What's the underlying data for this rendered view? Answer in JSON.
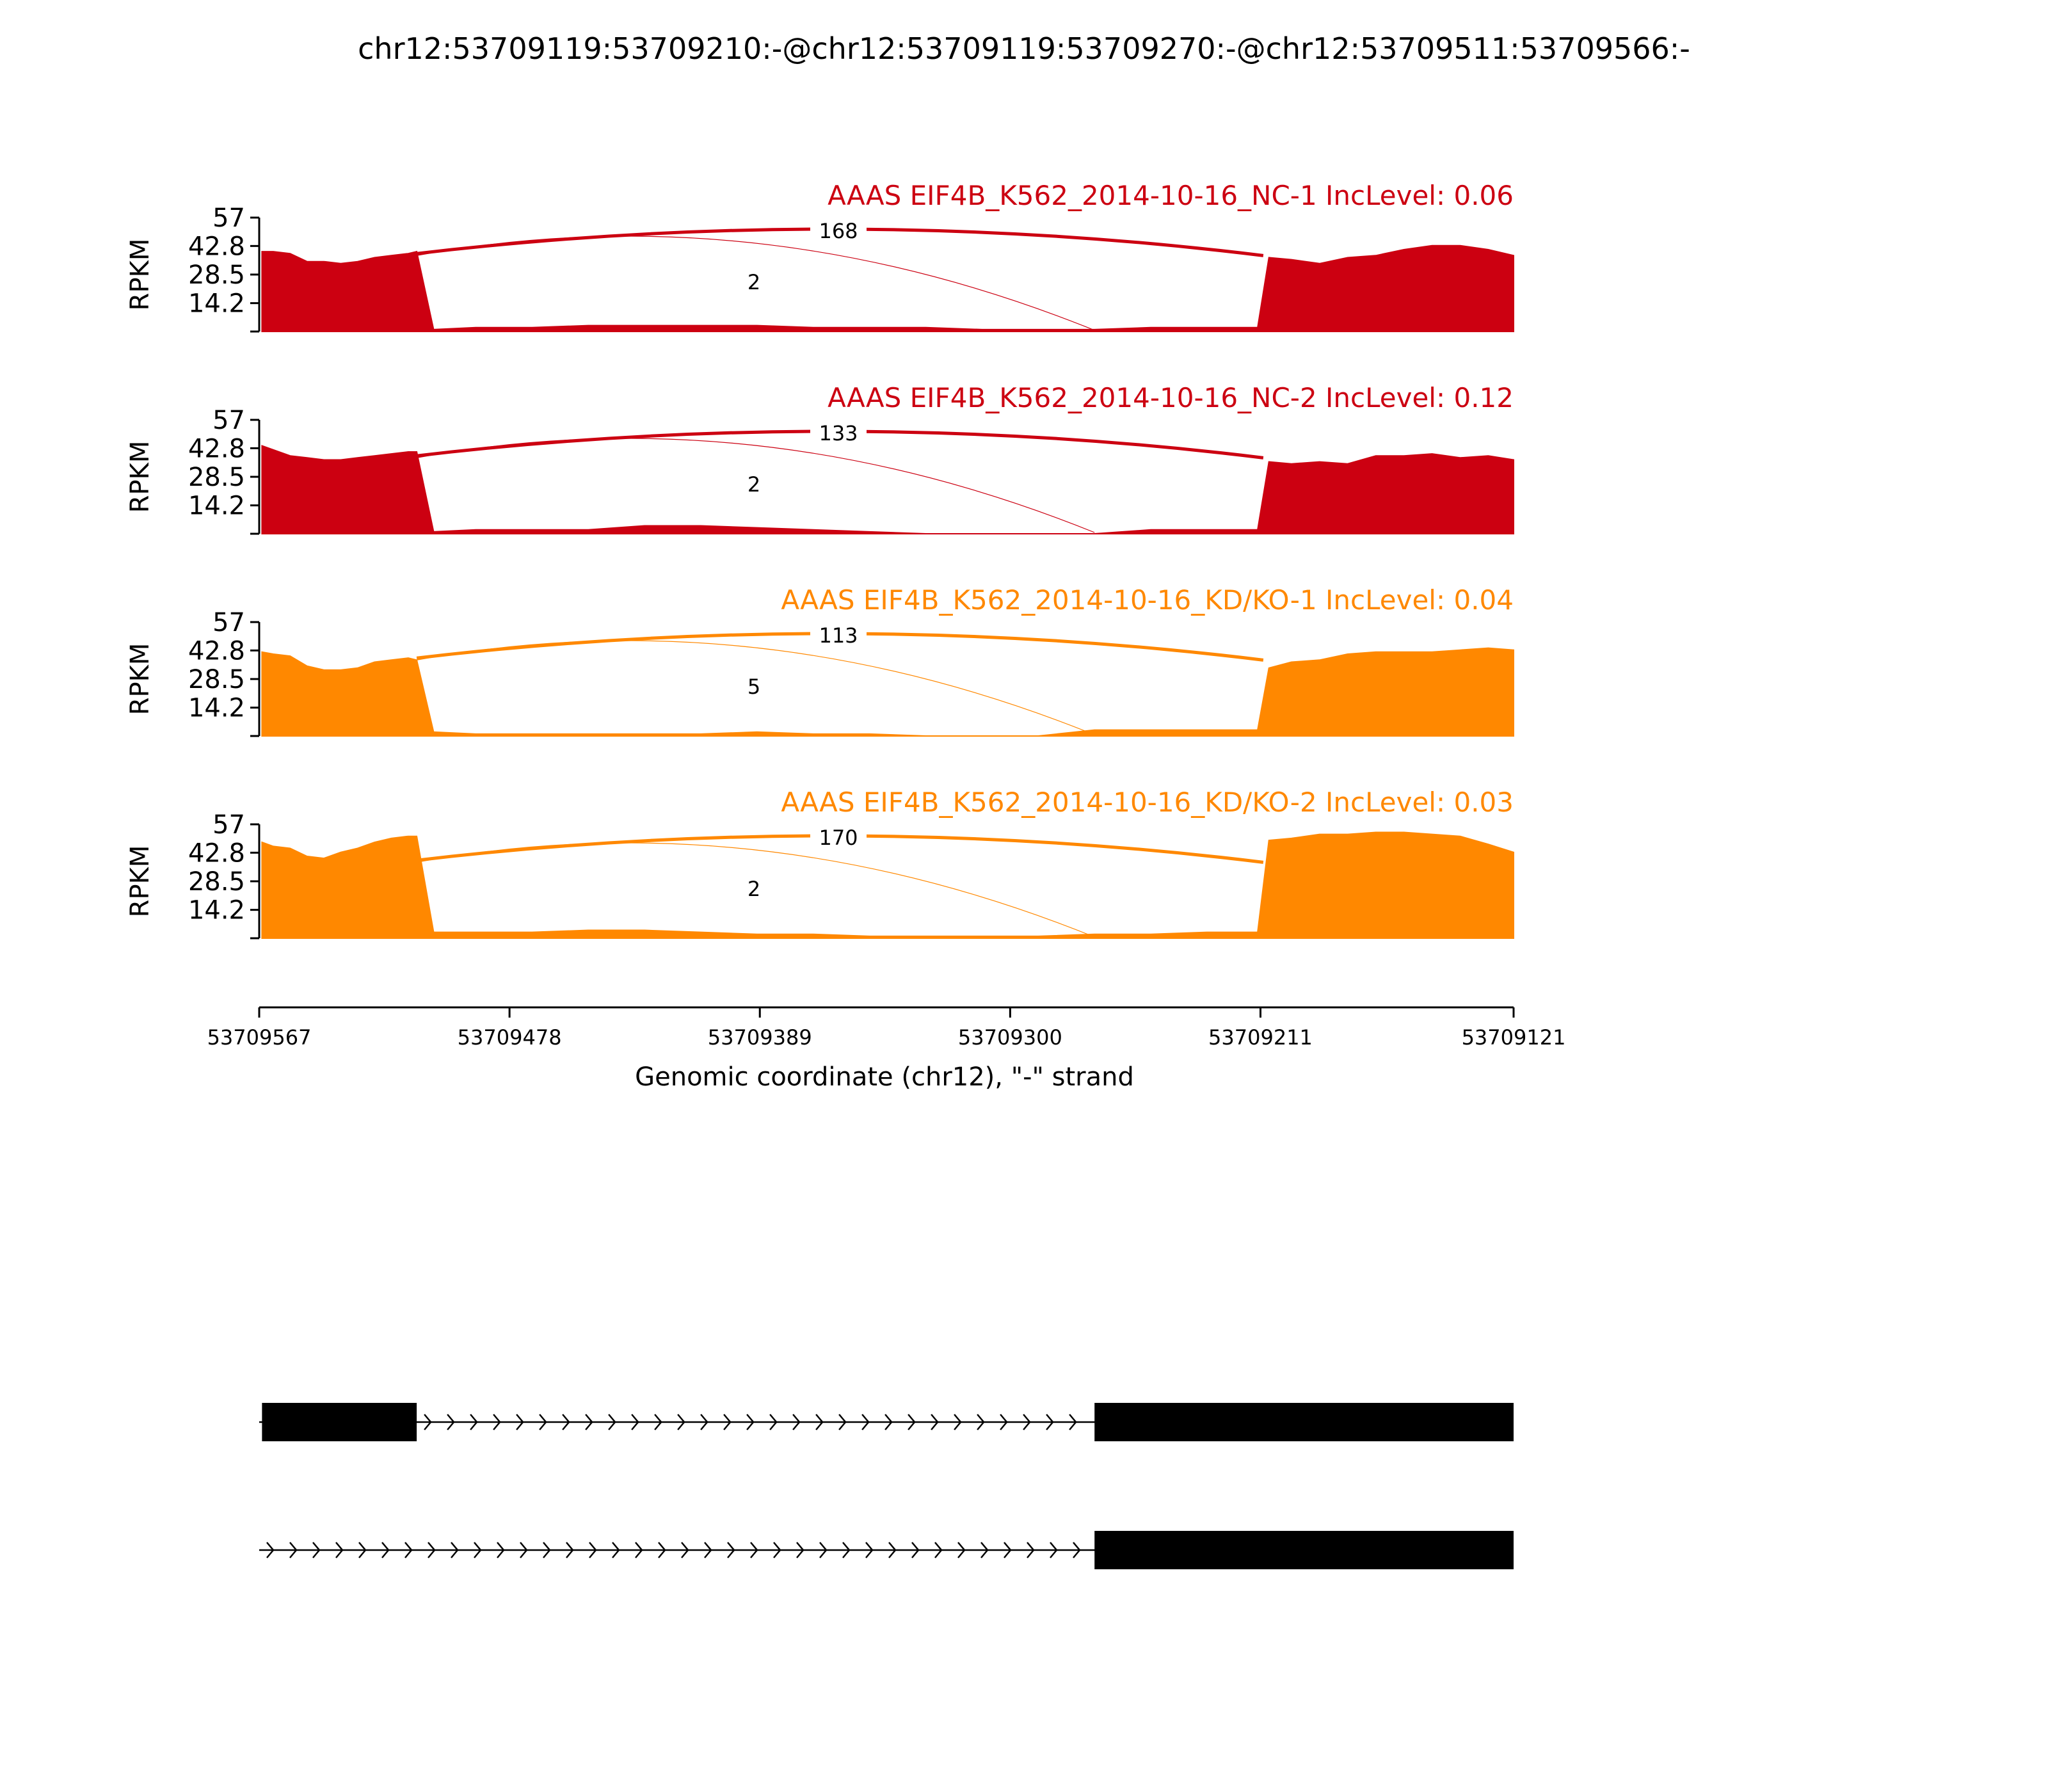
{
  "chart_data": {
    "type": "area",
    "title": "chr12:53709119:53709210:-@chr12:53709119:53709270:-@chr12:53709511:53709566:-",
    "xlabel": "Genomic coordinate (chr12), \"-\" strand",
    "ylabel": "RPKM",
    "xlim": [
      53709567,
      53709121
    ],
    "x_ticks": [
      "53709567",
      "53709478",
      "53709389",
      "53709300",
      "53709211",
      "53709121"
    ],
    "ylim": [
      0,
      57
    ],
    "y_ticks": [
      "57",
      "42.8",
      "28.5",
      "14.2"
    ],
    "colors": {
      "NC": "#cc0011",
      "KD": "#ff8800"
    },
    "panels": [
      {
        "title": "AAAS EIF4B_K562_2014-10-16_NC-1 IncLevel: 0.06",
        "group": "NC",
        "coverage": {
          "x": [
            53709566,
            53709562,
            53709556,
            53709550,
            53709544,
            53709538,
            53709532,
            53709526,
            53709520,
            53709514,
            53709511,
            53709505,
            53709490,
            53709470,
            53709450,
            53709430,
            53709410,
            53709390,
            53709370,
            53709350,
            53709330,
            53709310,
            53709290,
            53709270,
            53709250,
            53709230,
            53709212,
            53709208,
            53709200,
            53709190,
            53709180,
            53709170,
            53709160,
            53709150,
            53709140,
            53709130,
            53709121
          ],
          "y": [
            40,
            40,
            39,
            35,
            35,
            34,
            35,
            37,
            38,
            39,
            40,
            1,
            2,
            2,
            3,
            3,
            3,
            3,
            2,
            2,
            2,
            1,
            1,
            1,
            2,
            2,
            2,
            37,
            36,
            34,
            37,
            38,
            41,
            43,
            43,
            41,
            38
          ]
        },
        "junctions": [
          {
            "label": "168",
            "from": 53709511,
            "to": 53709210
          },
          {
            "label": "2",
            "from": 53709511,
            "to": 53709270
          }
        ]
      },
      {
        "title": "AAAS EIF4B_K562_2014-10-16_NC-2 IncLevel: 0.12",
        "group": "NC",
        "coverage": {
          "x": [
            53709566,
            53709562,
            53709556,
            53709550,
            53709544,
            53709538,
            53709532,
            53709526,
            53709520,
            53709514,
            53709511,
            53709505,
            53709490,
            53709470,
            53709450,
            53709430,
            53709410,
            53709390,
            53709370,
            53709350,
            53709330,
            53709310,
            53709290,
            53709270,
            53709250,
            53709230,
            53709212,
            53709208,
            53709200,
            53709190,
            53709180,
            53709170,
            53709160,
            53709150,
            53709140,
            53709130,
            53709121
          ],
          "y": [
            44,
            42,
            39,
            38,
            37,
            37,
            38,
            39,
            40,
            41,
            41,
            1,
            2,
            2,
            2,
            4,
            4,
            3,
            2,
            1,
            0,
            0,
            0,
            0,
            2,
            2,
            2,
            36,
            35,
            36,
            35,
            39,
            39,
            40,
            38,
            39,
            37
          ]
        },
        "junctions": [
          {
            "label": "133",
            "from": 53709511,
            "to": 53709210
          },
          {
            "label": "2",
            "from": 53709511,
            "to": 53709270
          }
        ]
      },
      {
        "title": "AAAS EIF4B_K562_2014-10-16_KD/KO-1 IncLevel: 0.04",
        "group": "KD",
        "coverage": {
          "x": [
            53709566,
            53709562,
            53709556,
            53709550,
            53709544,
            53709538,
            53709532,
            53709526,
            53709520,
            53709514,
            53709511,
            53709505,
            53709490,
            53709470,
            53709450,
            53709430,
            53709410,
            53709390,
            53709370,
            53709350,
            53709330,
            53709310,
            53709290,
            53709270,
            53709250,
            53709230,
            53709212,
            53709208,
            53709200,
            53709190,
            53709180,
            53709170,
            53709160,
            53709150,
            53709140,
            53709130,
            53709121
          ],
          "y": [
            42,
            41,
            40,
            35,
            33,
            33,
            34,
            37,
            38,
            39,
            38,
            2,
            1,
            1,
            1,
            1,
            1,
            2,
            1,
            1,
            0,
            0,
            0,
            3,
            3,
            3,
            3,
            34,
            37,
            38,
            41,
            42,
            42,
            42,
            43,
            44,
            43
          ]
        },
        "junctions": [
          {
            "label": "113",
            "from": 53709511,
            "to": 53709210
          },
          {
            "label": "5",
            "from": 53709511,
            "to": 53709270
          }
        ]
      },
      {
        "title": "AAAS EIF4B_K562_2014-10-16_KD/KO-2 IncLevel: 0.03",
        "group": "KD",
        "coverage": {
          "x": [
            53709566,
            53709562,
            53709556,
            53709550,
            53709544,
            53709538,
            53709532,
            53709526,
            53709520,
            53709514,
            53709511,
            53709505,
            53709490,
            53709470,
            53709450,
            53709430,
            53709410,
            53709390,
            53709370,
            53709350,
            53709330,
            53709310,
            53709290,
            53709270,
            53709250,
            53709230,
            53709212,
            53709208,
            53709200,
            53709190,
            53709180,
            53709170,
            53709160,
            53709150,
            53709140,
            53709130,
            53709121
          ],
          "y": [
            48,
            46,
            45,
            41,
            40,
            43,
            45,
            48,
            50,
            51,
            51,
            3,
            3,
            3,
            4,
            4,
            3,
            2,
            2,
            1,
            1,
            1,
            1,
            2,
            2,
            3,
            3,
            49,
            50,
            52,
            52,
            53,
            53,
            52,
            51,
            47,
            43
          ]
        },
        "junctions": [
          {
            "label": "170",
            "from": 53709511,
            "to": 53709210
          },
          {
            "label": "2",
            "from": 53709511,
            "to": 53709270
          }
        ]
      }
    ],
    "gene_models": [
      {
        "exons": [
          [
            53709566,
            53709511
          ],
          [
            53709270,
            53709121
          ]
        ]
      },
      {
        "exons": [
          [
            53709270,
            53709121
          ]
        ]
      }
    ]
  }
}
